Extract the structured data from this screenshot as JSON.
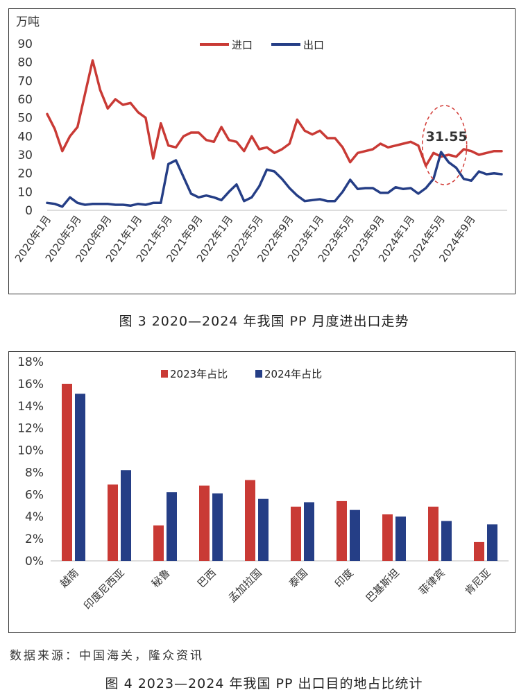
{
  "figure1": {
    "caption": "图 3  2020—2024 年我国 PP 月度进出口走势",
    "chart_data": {
      "type": "line",
      "ylabel": "万吨",
      "ylim": [
        0,
        90
      ],
      "yticks": [
        0,
        10,
        20,
        30,
        40,
        50,
        60,
        70,
        80,
        90
      ],
      "x_tick_labels": [
        "2020年1月",
        "2020年5月",
        "2020年9月",
        "2021年1月",
        "2021年5月",
        "2021年9月",
        "2022年1月",
        "2022年5月",
        "2022年9月",
        "2023年1月",
        "2023年5月",
        "2023年9月",
        "2024年1月",
        "2024年5月",
        "2024年9月"
      ],
      "legend_position": "top-center",
      "colors": {
        "import": "#c93a35",
        "export": "#253e86"
      },
      "series": [
        {
          "name": "进口",
          "values": [
            52,
            44,
            32,
            40,
            45,
            63,
            81,
            65,
            55,
            60,
            57,
            58,
            53,
            50,
            28,
            47,
            35,
            34,
            40,
            42,
            42,
            38,
            37,
            45,
            38,
            37,
            32,
            40,
            33,
            34,
            31,
            33,
            36,
            49,
            43,
            41,
            43,
            39,
            39,
            34,
            26,
            31,
            32,
            33,
            36,
            34,
            35,
            36,
            37,
            35,
            24,
            31,
            29,
            30,
            29,
            33,
            32,
            30,
            31,
            32,
            32
          ]
        },
        {
          "name": "出口",
          "values": [
            4,
            3.5,
            2,
            7,
            4,
            3,
            3.5,
            3.5,
            3.5,
            3,
            3,
            2.5,
            3.5,
            3,
            4,
            4,
            25,
            27,
            18,
            9,
            7,
            8,
            7,
            5.5,
            10,
            14,
            5,
            7,
            13,
            22,
            21,
            17,
            12,
            8,
            5,
            5.5,
            6,
            5,
            5,
            10,
            16.5,
            11.5,
            12,
            12,
            9.5,
            9.5,
            12.5,
            11.5,
            12,
            9,
            12,
            17,
            31.5,
            26,
            23,
            17,
            16,
            21,
            19.5,
            20,
            19.5
          ]
        }
      ],
      "annotation": {
        "label": "31.55",
        "series": "出口",
        "index": 52
      }
    }
  },
  "figure2": {
    "caption": "图 4  2023—2024 年我国 PP 出口目的地占比统计",
    "chart_data": {
      "type": "bar",
      "categories": [
        "越南",
        "印度尼西亚",
        "秘鲁",
        "巴西",
        "孟加拉国",
        "泰国",
        "印度",
        "巴基斯坦",
        "菲律宾",
        "肯尼亚"
      ],
      "ylim": [
        0,
        18
      ],
      "ytick_labels": [
        "0%",
        "2%",
        "4%",
        "6%",
        "8%",
        "10%",
        "12%",
        "14%",
        "16%",
        "18%"
      ],
      "legend_position": "top-center",
      "colors": {
        "2023": "#c93a35",
        "2024": "#253e86"
      },
      "series": [
        {
          "name": "2023年占比",
          "values": [
            16.0,
            6.9,
            3.2,
            6.8,
            7.3,
            4.9,
            5.4,
            4.2,
            4.9,
            1.7
          ]
        },
        {
          "name": "2024年占比",
          "values": [
            15.1,
            8.2,
            6.2,
            6.1,
            5.6,
            5.3,
            4.6,
            4.0,
            3.6,
            3.3
          ]
        }
      ]
    }
  },
  "source_note": "数据来源：中国海关，隆众资讯"
}
